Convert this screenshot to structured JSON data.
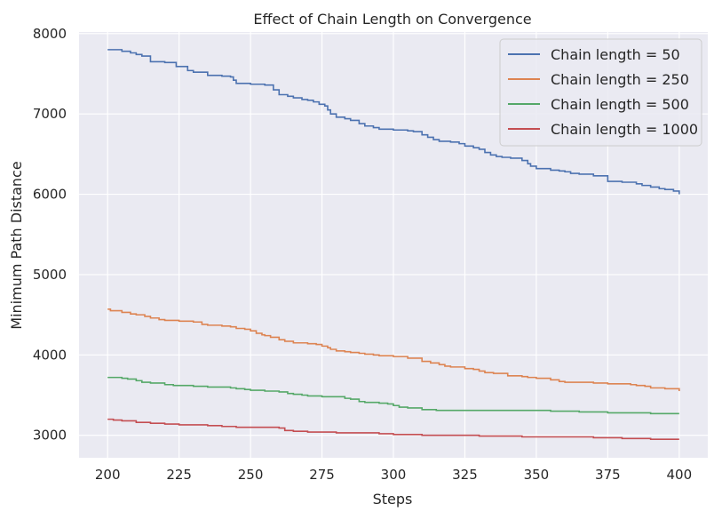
{
  "chart_data": {
    "type": "line",
    "title": "Effect of Chain Length on Convergence",
    "xlabel": "Steps",
    "ylabel": "Minimum Path Distance",
    "xlim": [
      190,
      410
    ],
    "ylim": [
      2720,
      8020
    ],
    "xticks": [
      200,
      225,
      250,
      275,
      300,
      325,
      350,
      375,
      400
    ],
    "yticks": [
      3000,
      4000,
      5000,
      6000,
      7000,
      8000
    ],
    "grid": true,
    "legend_position": "top-right",
    "series": [
      {
        "name": "Chain length = 50",
        "color": "#4c72b0",
        "x": [
          200,
          205,
          208,
          210,
          212,
          215,
          220,
          224,
          228,
          230,
          235,
          240,
          243,
          244,
          245,
          250,
          255,
          258,
          260,
          263,
          265,
          268,
          270,
          272,
          274,
          276,
          277,
          278,
          280,
          283,
          285,
          288,
          290,
          293,
          295,
          300,
          305,
          307,
          310,
          312,
          314,
          316,
          320,
          323,
          325,
          328,
          330,
          332,
          334,
          336,
          338,
          341,
          345,
          347,
          348,
          350,
          355,
          358,
          360,
          362,
          365,
          370,
          375,
          380,
          385,
          387,
          390,
          393,
          395,
          398,
          400
        ],
        "y": [
          7800,
          7780,
          7760,
          7740,
          7720,
          7650,
          7640,
          7590,
          7540,
          7520,
          7480,
          7470,
          7460,
          7420,
          7380,
          7370,
          7360,
          7300,
          7240,
          7220,
          7200,
          7180,
          7170,
          7150,
          7120,
          7100,
          7050,
          7000,
          6960,
          6940,
          6920,
          6880,
          6850,
          6830,
          6810,
          6800,
          6790,
          6780,
          6740,
          6710,
          6680,
          6660,
          6650,
          6630,
          6600,
          6580,
          6560,
          6520,
          6490,
          6470,
          6460,
          6450,
          6420,
          6380,
          6350,
          6320,
          6300,
          6290,
          6280,
          6260,
          6250,
          6230,
          6160,
          6150,
          6130,
          6110,
          6090,
          6070,
          6060,
          6040,
          6000
        ]
      },
      {
        "name": "Chain length = 250",
        "color": "#dd8452",
        "x": [
          200,
          201,
          205,
          208,
          210,
          213,
          215,
          218,
          220,
          225,
          230,
          233,
          235,
          240,
          243,
          245,
          248,
          250,
          252,
          254,
          255,
          257,
          260,
          262,
          265,
          270,
          273,
          275,
          277,
          278,
          280,
          283,
          285,
          288,
          290,
          293,
          295,
          300,
          305,
          310,
          313,
          316,
          318,
          320,
          325,
          328,
          330,
          332,
          335,
          340,
          345,
          347,
          350,
          355,
          358,
          360,
          365,
          370,
          375,
          380,
          383,
          385,
          388,
          390,
          393,
          395,
          398,
          400
        ],
        "y": [
          4570,
          4550,
          4530,
          4510,
          4500,
          4480,
          4460,
          4440,
          4430,
          4420,
          4410,
          4380,
          4370,
          4360,
          4350,
          4330,
          4320,
          4300,
          4270,
          4250,
          4240,
          4220,
          4190,
          4170,
          4150,
          4140,
          4130,
          4110,
          4090,
          4070,
          4050,
          4040,
          4030,
          4020,
          4010,
          4000,
          3990,
          3980,
          3960,
          3920,
          3900,
          3880,
          3860,
          3850,
          3830,
          3820,
          3800,
          3780,
          3770,
          3740,
          3730,
          3720,
          3710,
          3690,
          3670,
          3660,
          3660,
          3650,
          3640,
          3640,
          3630,
          3620,
          3610,
          3590,
          3590,
          3580,
          3580,
          3550
        ]
      },
      {
        "name": "Chain length = 500",
        "color": "#55a868",
        "x": [
          200,
          205,
          207,
          210,
          212,
          215,
          220,
          223,
          225,
          230,
          235,
          240,
          243,
          245,
          248,
          250,
          255,
          260,
          263,
          265,
          268,
          270,
          275,
          280,
          283,
          285,
          288,
          290,
          295,
          298,
          300,
          302,
          305,
          310,
          315,
          320,
          325,
          330,
          335,
          340,
          345,
          350,
          355,
          360,
          365,
          370,
          375,
          380,
          385,
          390,
          395,
          400
        ],
        "y": [
          3720,
          3710,
          3700,
          3680,
          3660,
          3650,
          3630,
          3620,
          3620,
          3610,
          3600,
          3600,
          3590,
          3580,
          3570,
          3560,
          3550,
          3540,
          3520,
          3510,
          3500,
          3490,
          3480,
          3480,
          3460,
          3450,
          3420,
          3410,
          3400,
          3390,
          3370,
          3350,
          3340,
          3320,
          3310,
          3310,
          3310,
          3310,
          3310,
          3310,
          3310,
          3310,
          3300,
          3300,
          3290,
          3290,
          3280,
          3280,
          3280,
          3270,
          3270,
          3270
        ]
      },
      {
        "name": "Chain length = 1000",
        "color": "#c44e52",
        "x": [
          200,
          202,
          205,
          210,
          215,
          220,
          225,
          230,
          235,
          240,
          245,
          250,
          255,
          260,
          262,
          265,
          270,
          275,
          280,
          285,
          290,
          295,
          300,
          305,
          310,
          315,
          320,
          325,
          330,
          335,
          340,
          345,
          350,
          355,
          360,
          365,
          370,
          375,
          380,
          385,
          390,
          395,
          400
        ],
        "y": [
          3200,
          3190,
          3180,
          3160,
          3150,
          3140,
          3130,
          3130,
          3120,
          3110,
          3100,
          3100,
          3100,
          3090,
          3060,
          3050,
          3040,
          3040,
          3030,
          3030,
          3030,
          3020,
          3010,
          3010,
          3000,
          3000,
          3000,
          3000,
          2990,
          2990,
          2990,
          2980,
          2980,
          2980,
          2980,
          2980,
          2970,
          2970,
          2960,
          2960,
          2950,
          2950,
          2950
        ]
      }
    ]
  }
}
